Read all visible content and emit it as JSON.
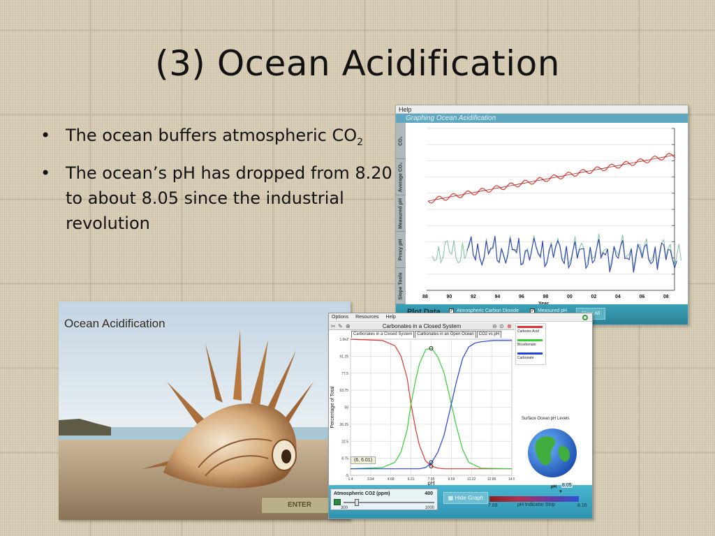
{
  "slide": {
    "title": "(3) Ocean Acidification",
    "bullets": [
      {
        "text": "The ocean buffers atmospheric CO",
        "sub": "2"
      },
      {
        "text": "The ocean’s pH has dropped from 8.20 to about 8.05 since the industrial revolution"
      }
    ]
  },
  "graphing_app": {
    "menu": [
      "Help"
    ],
    "title": "Graphing Ocean Acidification",
    "side_tabs": [
      "CO₂",
      "Average CO₂",
      "Measured pH",
      "Proxy pH",
      "Slope Tools"
    ],
    "x_tick_labels": [
      "88",
      "90",
      "92",
      "94",
      "96",
      "98",
      "00",
      "02",
      "04",
      "06",
      "08"
    ],
    "x_label": "Year",
    "plot_data_label": "Plot Data",
    "checkbox_co2": "Atmospheric Carbon Dioxide",
    "checkbox_ph": "Measured pH",
    "clear_all": "Clear All",
    "colors": {
      "co2": "#e03a2f",
      "proxy": "#7fbf9f",
      "measured": "#2a3fb8"
    }
  },
  "photo": {
    "title": "Ocean Acidification",
    "enter": "ENTER"
  },
  "carbonates_app": {
    "menu": [
      "Options",
      "Resources",
      "Help"
    ],
    "chart_title": "Carbonates in a Closed System",
    "tabs": [
      "Carbonates in a Closed System",
      "Carbonates in an Open Ocean",
      "CO2 vs pH"
    ],
    "legend": [
      "Carbonic Acid",
      "Bicarbonate",
      "Carbonate"
    ],
    "legend_colors": [
      "#e03030",
      "#30d030",
      "#2040e0"
    ],
    "surface_label": "Surface Ocean pH Levels",
    "coord_readout": "(6, 6.01)",
    "co2_label": "Atmospheric CO2 (ppm)",
    "co2_value": "400",
    "co2_min": "300",
    "co2_max": "1000",
    "co2_level": 0.143,
    "hide_graph": "Hide Graph",
    "ph_label": "pH",
    "ph_value": "8.05",
    "ph_min": "7.69",
    "ph_max": "8.16",
    "ph_strip_label": "pH Indicator Strip"
  },
  "chart_data": {
    "type": "line",
    "title": "Carbonates in a Closed System",
    "xlabel": "pH",
    "ylabel": "Percentage of Total",
    "x_tick_labels": [
      "1.4",
      "3.04",
      "4.68",
      "6.31",
      "7.95",
      "9.59",
      "11.22",
      "12.86",
      "14.5"
    ],
    "y_tick_labels": [
      "-5",
      "8.75",
      "22.5",
      "36.25",
      "50",
      "63.75",
      "77.5",
      "91.25",
      "1.0e2"
    ],
    "xlim": [
      1.4,
      14.5
    ],
    "ylim": [
      -5,
      100
    ],
    "series": [
      {
        "name": "Carbonic Acid",
        "color": "#e03030",
        "x": [
          1.4,
          4.0,
          5.0,
          5.5,
          6.0,
          6.31,
          6.7,
          7.0,
          7.5,
          8.0,
          8.5,
          9.0,
          10.0,
          14.5
        ],
        "y": [
          100,
          99,
          95,
          87,
          70,
          50,
          30,
          18,
          6,
          2,
          0.5,
          0,
          0,
          0
        ]
      },
      {
        "name": "Bicarbonate",
        "color": "#30d030",
        "x": [
          1.4,
          4.0,
          5.0,
          5.5,
          6.0,
          6.31,
          6.7,
          7.0,
          7.5,
          8.0,
          8.5,
          9.0,
          9.59,
          10.0,
          10.5,
          11.0,
          12.0,
          14.5
        ],
        "y": [
          0,
          1,
          5,
          13,
          30,
          50,
          69,
          81,
          92,
          93,
          86,
          74,
          50,
          33,
          15,
          5,
          0.5,
          0
        ]
      },
      {
        "name": "Carbonate",
        "color": "#2040e0",
        "x": [
          1.4,
          7.0,
          7.5,
          8.0,
          8.5,
          9.0,
          9.59,
          10.0,
          10.5,
          11.0,
          11.5,
          12.0,
          13.0,
          14.5
        ],
        "y": [
          0,
          0,
          1,
          5,
          13,
          26,
          50,
          67,
          85,
          94,
          97,
          98,
          99,
          99
        ]
      }
    ],
    "grid": true
  }
}
